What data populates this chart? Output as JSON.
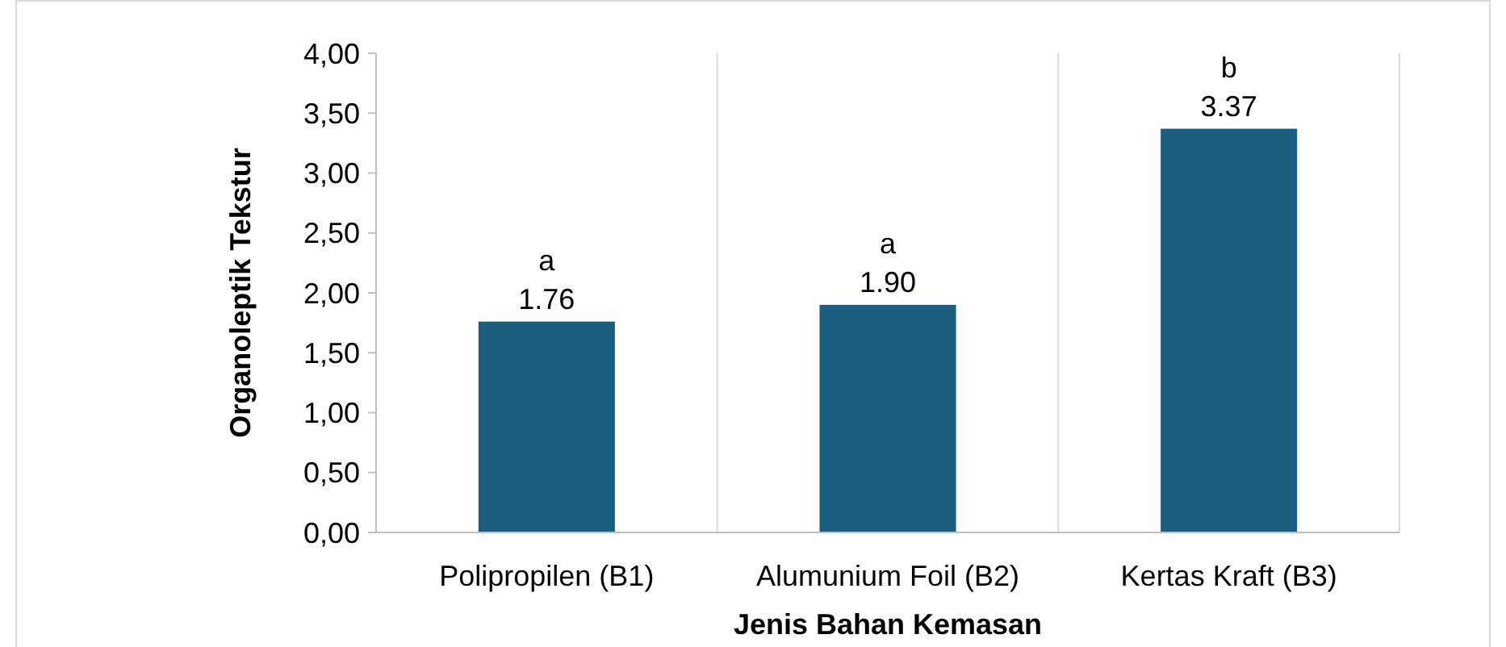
{
  "chart_data": {
    "type": "bar",
    "xlabel": "Jenis Bahan Kemasan",
    "ylabel": "Organoleptik Tekstur",
    "categories": [
      "Polipropilen (B1)",
      "Alumunium Foil (B2)",
      "Kertas Kraft (B3)"
    ],
    "values": [
      1.76,
      1.9,
      3.37
    ],
    "color": "#1b5e80",
    "value_labels": [
      "1.76",
      "1.90",
      "3.37"
    ],
    "annotations": [
      {
        "text": "a",
        "x": "Polipropilen (B1)",
        "y": 1.76
      },
      {
        "text": "a",
        "x": "Alumunium Foil (B2)",
        "y": 1.9
      },
      {
        "text": "b",
        "x": "Kertas Kraft (B3)",
        "y": 3.37
      }
    ],
    "ylim": [
      0,
      4
    ],
    "yticks": [
      {
        "value": 0,
        "label": "0,00"
      },
      {
        "value": 0.5,
        "label": "0,50"
      },
      {
        "value": 1,
        "label": "1,00"
      },
      {
        "value": 1.5,
        "label": "1,50"
      },
      {
        "value": 2,
        "label": "2,00"
      },
      {
        "value": 2.5,
        "label": "2,50"
      },
      {
        "value": 3,
        "label": "3,00"
      },
      {
        "value": 3.5,
        "label": "3,50"
      },
      {
        "value": 4,
        "label": "4,00"
      }
    ],
    "grid": "x"
  }
}
